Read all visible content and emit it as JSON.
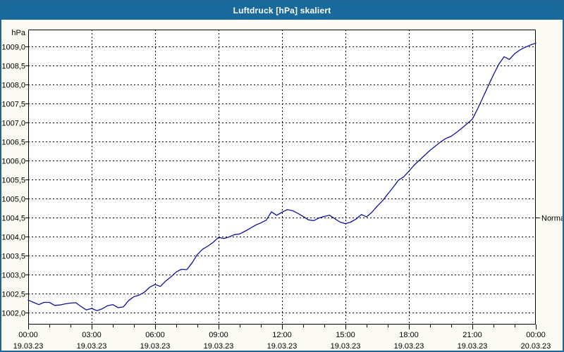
{
  "window": {
    "title": "Luftdruck [hPa] skaliert"
  },
  "chart_data": {
    "type": "line",
    "title": "Luftdruck [hPa] skaliert",
    "y_unit": "hPa",
    "ylabel": "hPa",
    "xlabel": "",
    "ylim": [
      1002.0,
      1009.0
    ],
    "y_tick_step": 0.5,
    "decimal_separator": ",",
    "grid": "dashed",
    "legend_position": "none",
    "x_hours_range": [
      0,
      24
    ],
    "x_minor_tick_hours": 1,
    "x_major_ticks": [
      {
        "time": "00:00",
        "date": "19.03.23"
      },
      {
        "time": "03:00",
        "date": "19.03.23"
      },
      {
        "time": "06:00",
        "date": "19.03.23"
      },
      {
        "time": "09:00",
        "date": "19.03.23"
      },
      {
        "time": "12:00",
        "date": "19.03.23"
      },
      {
        "time": "15:00",
        "date": "19.03.23"
      },
      {
        "time": "18:00",
        "date": "19.03.23"
      },
      {
        "time": "21:00",
        "date": "19.03.23"
      },
      {
        "time": "00:00",
        "date": "20.03.23"
      }
    ],
    "annotations": [
      {
        "label": "Normal",
        "value": 1004.5,
        "position": "right-edge"
      }
    ],
    "series": [
      {
        "name": "Luftdruck",
        "color": "#10109f",
        "x_hours": [
          0,
          0.25,
          0.5,
          0.75,
          1,
          1.25,
          1.5,
          1.75,
          2,
          2.25,
          2.5,
          2.75,
          3,
          3.25,
          3.5,
          3.75,
          4,
          4.25,
          4.5,
          4.75,
          5,
          5.25,
          5.5,
          5.75,
          6,
          6.25,
          6.5,
          6.75,
          7,
          7.25,
          7.5,
          7.75,
          8,
          8.25,
          8.5,
          8.75,
          9,
          9.25,
          9.5,
          9.75,
          10,
          10.25,
          10.5,
          10.75,
          11,
          11.25,
          11.5,
          11.75,
          12,
          12.25,
          12.5,
          12.75,
          13,
          13.25,
          13.5,
          13.75,
          14,
          14.25,
          14.5,
          14.75,
          15,
          15.25,
          15.5,
          15.75,
          16,
          16.25,
          16.5,
          16.75,
          17,
          17.25,
          17.5,
          17.75,
          18,
          18.25,
          18.5,
          18.75,
          19,
          19.25,
          19.5,
          19.75,
          20,
          20.25,
          20.5,
          20.75,
          21,
          21.25,
          21.5,
          21.75,
          22,
          22.25,
          22.5,
          22.75,
          23,
          23.25,
          23.5,
          23.75,
          24
        ],
        "values": [
          1002.32,
          1002.26,
          1002.2,
          1002.26,
          1002.26,
          1002.18,
          1002.19,
          1002.22,
          1002.24,
          1002.25,
          1002.15,
          1002.06,
          1002.1,
          1002.04,
          1002.09,
          1002.17,
          1002.2,
          1002.12,
          1002.14,
          1002.31,
          1002.41,
          1002.45,
          1002.53,
          1002.66,
          1002.73,
          1002.68,
          1002.82,
          1002.93,
          1003.06,
          1003.13,
          1003.12,
          1003.3,
          1003.52,
          1003.66,
          1003.74,
          1003.84,
          1003.97,
          1003.94,
          1003.98,
          1004.04,
          1004.06,
          1004.13,
          1004.21,
          1004.29,
          1004.35,
          1004.42,
          1004.64,
          1004.55,
          1004.63,
          1004.7,
          1004.67,
          1004.6,
          1004.52,
          1004.43,
          1004.41,
          1004.48,
          1004.52,
          1004.55,
          1004.46,
          1004.37,
          1004.33,
          1004.37,
          1004.45,
          1004.57,
          1004.51,
          1004.63,
          1004.79,
          1004.93,
          1005.11,
          1005.28,
          1005.47,
          1005.56,
          1005.71,
          1005.87,
          1006.0,
          1006.13,
          1006.26,
          1006.37,
          1006.48,
          1006.57,
          1006.63,
          1006.73,
          1006.84,
          1006.96,
          1007.08,
          1007.35,
          1007.65,
          1007.95,
          1008.25,
          1008.52,
          1008.72,
          1008.65,
          1008.8,
          1008.9,
          1008.97,
          1009.03,
          1009.08
        ]
      }
    ]
  },
  "colors": {
    "titlebar": "#1a699c",
    "window_border": "#1d6697",
    "content_background": "#fbfbf4",
    "plot_background": "#ffffff",
    "gridline": "#000000",
    "series_line": "#10109f",
    "label_text": "#000000"
  }
}
